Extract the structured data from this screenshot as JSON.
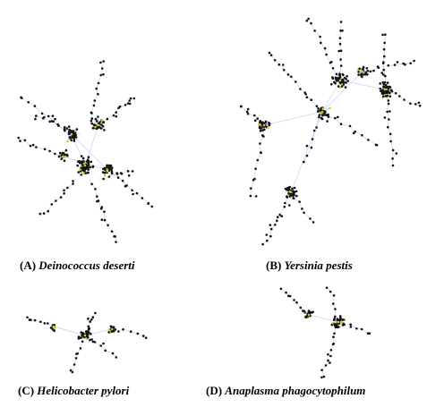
{
  "panels": [
    {
      "label": "(A)",
      "name": "Deinococcus deserti"
    },
    {
      "label": "(B)",
      "name": "Yersinia pestis"
    },
    {
      "label": "(C)",
      "name": "Helicobacter pylori"
    },
    {
      "label": "(D)",
      "name": "Anaplasma phagocytophilum"
    }
  ]
}
